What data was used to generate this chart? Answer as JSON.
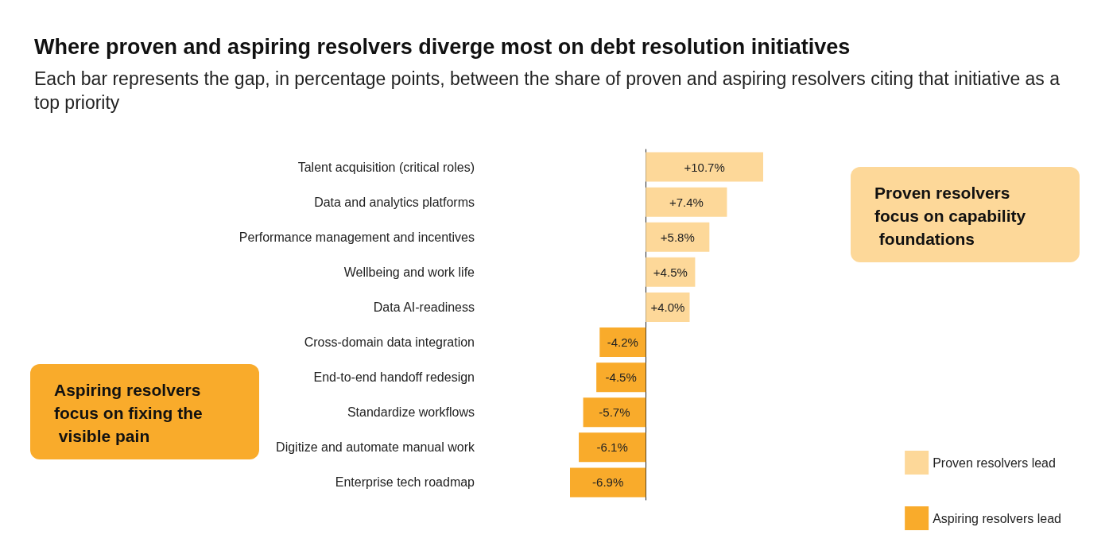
{
  "chart_data": {
    "type": "bar",
    "orientation": "horizontal",
    "stacked": true,
    "title": "Where proven and aspiring resolvers diverge most on debt resolution initiatives",
    "subtitle": "Each bar represents the gap, in percentage points, between the share of proven and aspiring resolvers citing that initiative as a top priority",
    "categories": [
      "Talent acquisition (critical roles)",
      "Data and analytics platforms",
      "Performance management and incentives",
      "Wellbeing and work life",
      "Data AI-readiness",
      "Cross-domain data integration",
      "End-to-end handoff redesign",
      "Standardize workflows",
      "Digitize and automate manual work",
      "Enterprise tech roadmap"
    ],
    "series": [
      {
        "name": "Proven resolvers lead",
        "color": "#fdd899",
        "values": [
          10.7,
          7.4,
          5.8,
          4.5,
          4.0,
          null,
          null,
          null,
          null,
          null
        ],
        "value_labels": [
          "+10.7%",
          "+7.4%",
          "+5.8%",
          "+4.5%",
          "+4.0%",
          null,
          null,
          null,
          null,
          null
        ]
      },
      {
        "name": "Aspiring resolvers lead",
        "color": "#f9ab2b",
        "values": [
          null,
          null,
          null,
          null,
          null,
          -4.2,
          -4.5,
          -5.7,
          -6.1,
          -6.9
        ],
        "value_labels": [
          null,
          null,
          null,
          null,
          null,
          "-4.2%",
          "-4.5%",
          "-5.7%",
          "-6.1%",
          "-6.9%"
        ]
      }
    ],
    "annotations": [
      "Proven resolvers focus on capability foundations",
      "Aspiring resolvers focus on fixing the visible pain"
    ],
    "legend": "bottom right",
    "grid": false
  }
}
